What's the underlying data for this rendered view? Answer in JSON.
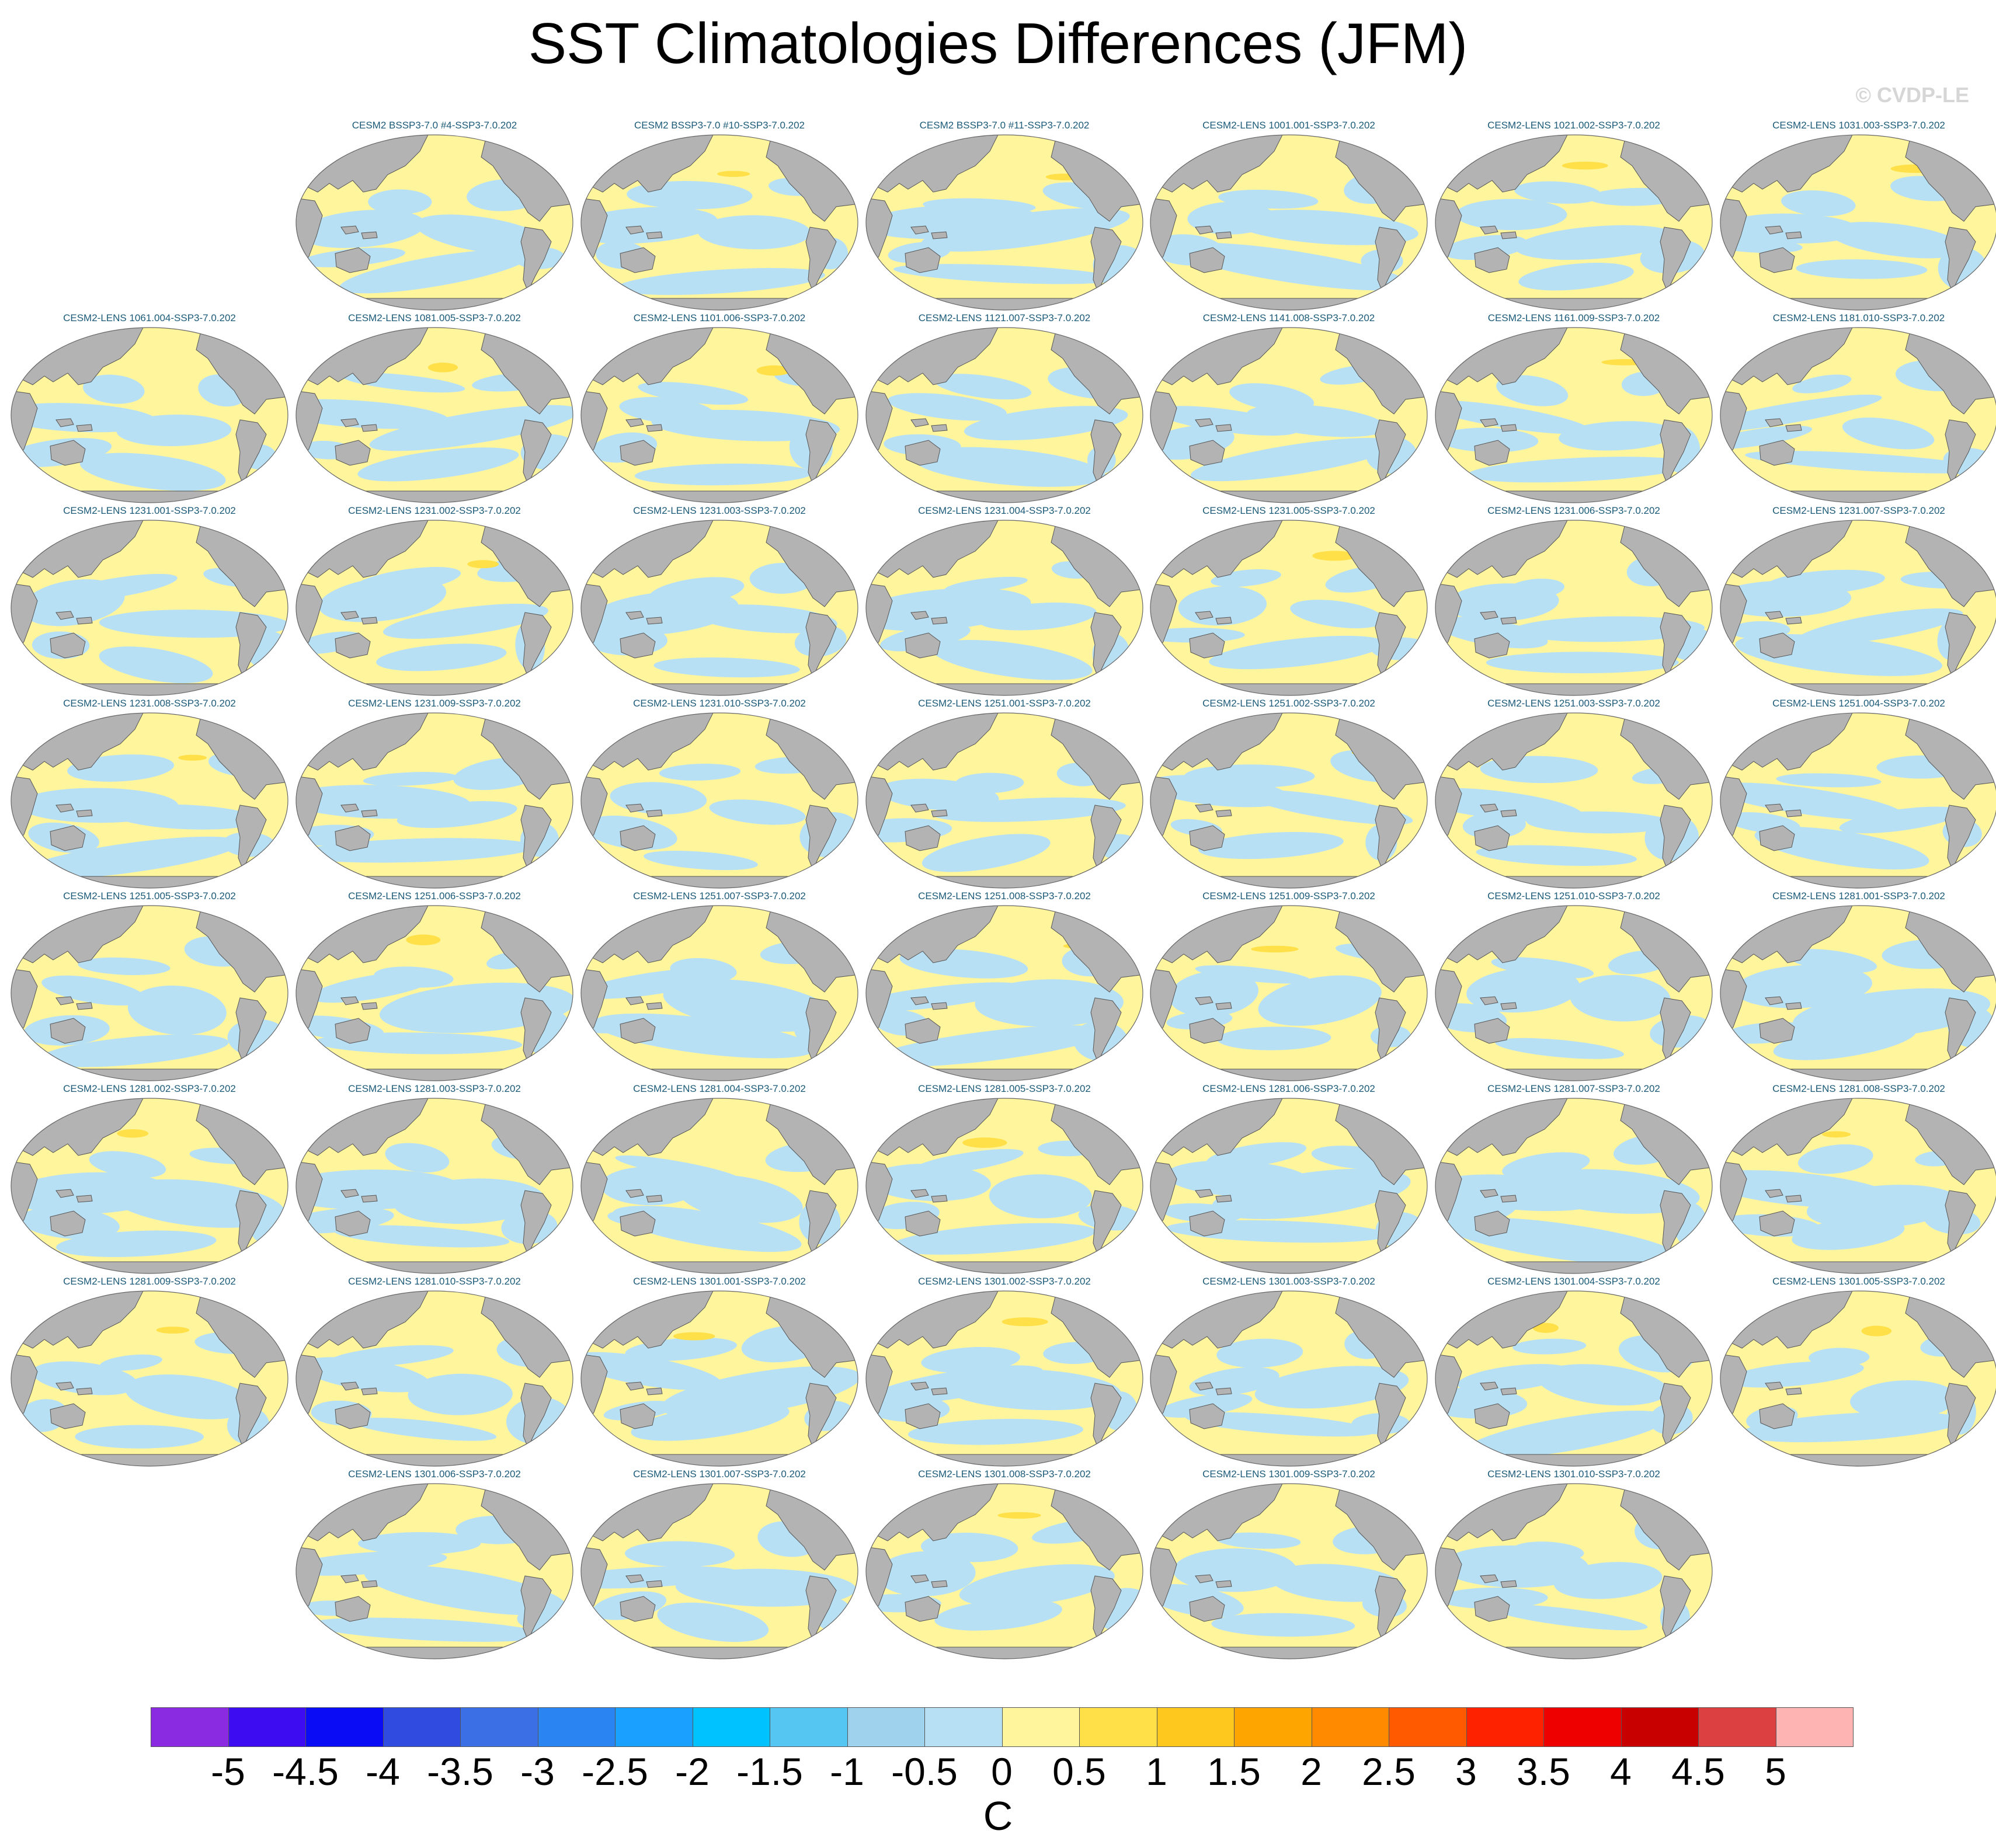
{
  "title": "SST Climatologies Differences (JFM)",
  "credit": "© CVDP-LE",
  "units": "C",
  "colors": {
    "land": "#b3b3b3",
    "warm_small": "#fff59d",
    "warm_mid": "#ffe048",
    "cool_small": "#b8e0f5",
    "coast": "#555555"
  },
  "panels": [
    {
      "row": 0,
      "col": 1,
      "title": "CESM2 BSSP3-7.0 #4-SSP3-7.0.202"
    },
    {
      "row": 0,
      "col": 2,
      "title": "CESM2 BSSP3-7.0 #10-SSP3-7.0.202"
    },
    {
      "row": 0,
      "col": 3,
      "title": "CESM2 BSSP3-7.0 #11-SSP3-7.0.202"
    },
    {
      "row": 0,
      "col": 4,
      "title": "CESM2-LENS 1001.001-SSP3-7.0.202"
    },
    {
      "row": 0,
      "col": 5,
      "title": "CESM2-LENS 1021.002-SSP3-7.0.202"
    },
    {
      "row": 0,
      "col": 6,
      "title": "CESM2-LENS 1031.003-SSP3-7.0.202"
    },
    {
      "row": 1,
      "col": 0,
      "title": "CESM2-LENS 1061.004-SSP3-7.0.202"
    },
    {
      "row": 1,
      "col": 1,
      "title": "CESM2-LENS 1081.005-SSP3-7.0.202"
    },
    {
      "row": 1,
      "col": 2,
      "title": "CESM2-LENS 1101.006-SSP3-7.0.202"
    },
    {
      "row": 1,
      "col": 3,
      "title": "CESM2-LENS 1121.007-SSP3-7.0.202"
    },
    {
      "row": 1,
      "col": 4,
      "title": "CESM2-LENS 1141.008-SSP3-7.0.202"
    },
    {
      "row": 1,
      "col": 5,
      "title": "CESM2-LENS 1161.009-SSP3-7.0.202"
    },
    {
      "row": 1,
      "col": 6,
      "title": "CESM2-LENS 1181.010-SSP3-7.0.202"
    },
    {
      "row": 2,
      "col": 0,
      "title": "CESM2-LENS 1231.001-SSP3-7.0.202"
    },
    {
      "row": 2,
      "col": 1,
      "title": "CESM2-LENS 1231.002-SSP3-7.0.202"
    },
    {
      "row": 2,
      "col": 2,
      "title": "CESM2-LENS 1231.003-SSP3-7.0.202"
    },
    {
      "row": 2,
      "col": 3,
      "title": "CESM2-LENS 1231.004-SSP3-7.0.202"
    },
    {
      "row": 2,
      "col": 4,
      "title": "CESM2-LENS 1231.005-SSP3-7.0.202"
    },
    {
      "row": 2,
      "col": 5,
      "title": "CESM2-LENS 1231.006-SSP3-7.0.202"
    },
    {
      "row": 2,
      "col": 6,
      "title": "CESM2-LENS 1231.007-SSP3-7.0.202"
    },
    {
      "row": 3,
      "col": 0,
      "title": "CESM2-LENS 1231.008-SSP3-7.0.202"
    },
    {
      "row": 3,
      "col": 1,
      "title": "CESM2-LENS 1231.009-SSP3-7.0.202"
    },
    {
      "row": 3,
      "col": 2,
      "title": "CESM2-LENS 1231.010-SSP3-7.0.202"
    },
    {
      "row": 3,
      "col": 3,
      "title": "CESM2-LENS 1251.001-SSP3-7.0.202"
    },
    {
      "row": 3,
      "col": 4,
      "title": "CESM2-LENS 1251.002-SSP3-7.0.202"
    },
    {
      "row": 3,
      "col": 5,
      "title": "CESM2-LENS 1251.003-SSP3-7.0.202"
    },
    {
      "row": 3,
      "col": 6,
      "title": "CESM2-LENS 1251.004-SSP3-7.0.202"
    },
    {
      "row": 4,
      "col": 0,
      "title": "CESM2-LENS 1251.005-SSP3-7.0.202"
    },
    {
      "row": 4,
      "col": 1,
      "title": "CESM2-LENS 1251.006-SSP3-7.0.202"
    },
    {
      "row": 4,
      "col": 2,
      "title": "CESM2-LENS 1251.007-SSP3-7.0.202"
    },
    {
      "row": 4,
      "col": 3,
      "title": "CESM2-LENS 1251.008-SSP3-7.0.202"
    },
    {
      "row": 4,
      "col": 4,
      "title": "CESM2-LENS 1251.009-SSP3-7.0.202"
    },
    {
      "row": 4,
      "col": 5,
      "title": "CESM2-LENS 1251.010-SSP3-7.0.202"
    },
    {
      "row": 4,
      "col": 6,
      "title": "CESM2-LENS 1281.001-SSP3-7.0.202"
    },
    {
      "row": 5,
      "col": 0,
      "title": "CESM2-LENS 1281.002-SSP3-7.0.202"
    },
    {
      "row": 5,
      "col": 1,
      "title": "CESM2-LENS 1281.003-SSP3-7.0.202"
    },
    {
      "row": 5,
      "col": 2,
      "title": "CESM2-LENS 1281.004-SSP3-7.0.202"
    },
    {
      "row": 5,
      "col": 3,
      "title": "CESM2-LENS 1281.005-SSP3-7.0.202"
    },
    {
      "row": 5,
      "col": 4,
      "title": "CESM2-LENS 1281.006-SSP3-7.0.202"
    },
    {
      "row": 5,
      "col": 5,
      "title": "CESM2-LENS 1281.007-SSP3-7.0.202"
    },
    {
      "row": 5,
      "col": 6,
      "title": "CESM2-LENS 1281.008-SSP3-7.0.202"
    },
    {
      "row": 6,
      "col": 0,
      "title": "CESM2-LENS 1281.009-SSP3-7.0.202"
    },
    {
      "row": 6,
      "col": 1,
      "title": "CESM2-LENS 1281.010-SSP3-7.0.202"
    },
    {
      "row": 6,
      "col": 2,
      "title": "CESM2-LENS 1301.001-SSP3-7.0.202"
    },
    {
      "row": 6,
      "col": 3,
      "title": "CESM2-LENS 1301.002-SSP3-7.0.202"
    },
    {
      "row": 6,
      "col": 4,
      "title": "CESM2-LENS 1301.003-SSP3-7.0.202"
    },
    {
      "row": 6,
      "col": 5,
      "title": "CESM2-LENS 1301.004-SSP3-7.0.202"
    },
    {
      "row": 6,
      "col": 6,
      "title": "CESM2-LENS 1301.005-SSP3-7.0.202"
    },
    {
      "row": 7,
      "col": 1,
      "title": "CESM2-LENS 1301.006-SSP3-7.0.202"
    },
    {
      "row": 7,
      "col": 2,
      "title": "CESM2-LENS 1301.007-SSP3-7.0.202"
    },
    {
      "row": 7,
      "col": 3,
      "title": "CESM2-LENS 1301.008-SSP3-7.0.202"
    },
    {
      "row": 7,
      "col": 4,
      "title": "CESM2-LENS 1301.009-SSP3-7.0.202"
    },
    {
      "row": 7,
      "col": 5,
      "title": "CESM2-LENS 1301.010-SSP3-7.0.202"
    }
  ],
  "colorbar": {
    "colors": [
      "#8a2be2",
      "#3d0cf0",
      "#0a0cf5",
      "#2f4be0",
      "#3a6fe6",
      "#2a84f2",
      "#1aa0ff",
      "#00c2ff",
      "#55c5f2",
      "#9fd2ec",
      "#b8e0f5",
      "#fff59d",
      "#ffe048",
      "#ffc81e",
      "#ffa500",
      "#ff8a00",
      "#ff5a00",
      "#ff2200",
      "#ee0000",
      "#c80000",
      "#dd4040",
      "#ffb4b4"
    ],
    "labels": [
      "-5",
      "-4.5",
      "-4",
      "-3.5",
      "-3",
      "-2.5",
      "-2",
      "-1.5",
      "-1",
      "-0.5",
      "0",
      "0.5",
      "1",
      "1.5",
      "2",
      "2.5",
      "3",
      "3.5",
      "4",
      "4.5",
      "5"
    ]
  }
}
